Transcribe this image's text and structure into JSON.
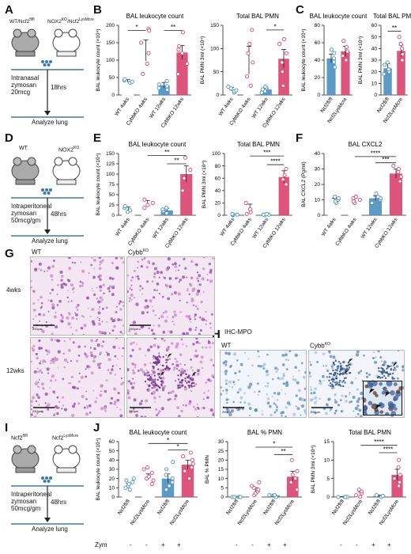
{
  "panels": {
    "A": {
      "letter": "A",
      "mouse_left": "WT/Ncf2",
      "mouse_left_sup": "fl/fl",
      "mouse_right": "NOX2",
      "mouse_right_sup": "KO",
      "mouse_right2": "/Ncf2",
      "mouse_right2_sup": "LysMcre",
      "step1": "Intranasal",
      "step2": "zymosan",
      "step3": "20mcg",
      "time": "18hrs",
      "end": "Analyze lung"
    },
    "B": {
      "letter": "B"
    },
    "C": {
      "letter": "C"
    },
    "D": {
      "letter": "D",
      "mouse_left": "WT",
      "mouse_right": "NOX2",
      "mouse_right_sup": "KO",
      "step1": "Intraperitoneal",
      "step2": "zymosan",
      "step3": "50mcg/gm",
      "time": "48hrs",
      "end": "Analyze lung"
    },
    "E": {
      "letter": "E"
    },
    "F": {
      "letter": "F"
    },
    "G": {
      "letter": "G",
      "col1": "WT",
      "col2": "Cybb",
      "col2_sup": "KO",
      "row1": "4wks",
      "row2": "12wks"
    },
    "H": {
      "letter": "H",
      "title": "IHC-MPO",
      "col1": "WT",
      "col2": "Cybb",
      "col2_sup": "KO"
    },
    "I": {
      "letter": "I",
      "mouse_left": "Ncf2",
      "mouse_left_sup": "fl/fl",
      "mouse_right": "Ncf2",
      "mouse_right_sup": "LysMcre",
      "step1": "Intraperitoneal",
      "step2": "zymosan",
      "step3": "50mcg/gm",
      "time": "48hrs",
      "end": "Analyze lung"
    },
    "J": {
      "letter": "J",
      "zym_label": "Zym",
      "zym_signs": [
        "-",
        "-",
        "+",
        "+"
      ]
    }
  },
  "chart_data": [
    {
      "id": "B1",
      "type": "bar",
      "title": "BAL leukocyte count",
      "ylabel": "BAL leukocyte count (×10⁴)",
      "ylim": [
        0,
        200
      ],
      "yticks": [
        0,
        50,
        100,
        150,
        200
      ],
      "categories": [
        "WT 4wks",
        "CybbKO 4wks",
        "WT 12wks",
        "CybbKO 12wks"
      ],
      "values": [
        40,
        128,
        28,
        122
      ],
      "errors": [
        4,
        30,
        8,
        20
      ],
      "points": [
        [
          35,
          38,
          42,
          45
        ],
        [
          60,
          90,
          120,
          150,
          190,
          185
        ],
        [
          15,
          20,
          25,
          30,
          40
        ],
        [
          60,
          90,
          120,
          130,
          140,
          180
        ]
      ],
      "colors": [
        "#4a90c2",
        "#d9436f",
        "#4a90c2",
        "#d9436f"
      ],
      "filled": [
        false,
        false,
        true,
        true
      ],
      "sig": [
        {
          "from": 0,
          "to": 1,
          "label": "*",
          "level": 185
        },
        {
          "from": 2,
          "to": 3,
          "label": "**",
          "level": 185
        }
      ]
    },
    {
      "id": "B2",
      "type": "bar",
      "title": "Total BAL PMN",
      "ylabel": "BAL PMN 3ml (×10⁴)",
      "ylim": [
        0,
        150
      ],
      "yticks": [
        0,
        50,
        100,
        150
      ],
      "categories": [
        "WT 4wks",
        "CybbKO 4wks",
        "WT 12wks",
        "CybbKO 12wks"
      ],
      "values": [
        12,
        75,
        12,
        78
      ],
      "errors": [
        4,
        30,
        3,
        20
      ],
      "points": [
        [
          5,
          8,
          10,
          14,
          18
        ],
        [
          20,
          40,
          70,
          110,
          140,
          90
        ],
        [
          5,
          8,
          12,
          15,
          18
        ],
        [
          20,
          50,
          70,
          90,
          110,
          120
        ]
      ],
      "colors": [
        "#4a90c2",
        "#d9436f",
        "#4a90c2",
        "#d9436f"
      ],
      "filled": [
        false,
        false,
        true,
        true
      ],
      "sig": [
        {
          "from": 2,
          "to": 3,
          "label": "*",
          "level": 140
        }
      ]
    },
    {
      "id": "C1",
      "type": "bar",
      "title": "BAL leukocyte count",
      "ylabel": "BAL leukocyte count (×10⁴)",
      "ylim": [
        0,
        80
      ],
      "yticks": [
        0,
        20,
        40,
        60,
        80
      ],
      "categories": [
        "Ncf2fl/fl",
        "Ncf2LysMcre"
      ],
      "values": [
        42,
        50
      ],
      "errors": [
        5,
        6
      ],
      "points": [
        [
          32,
          38,
          42,
          48,
          52
        ],
        [
          40,
          45,
          50,
          55,
          62
        ]
      ],
      "colors": [
        "#4a90c2",
        "#d9436f"
      ],
      "filled": [
        true,
        true
      ],
      "sig": []
    },
    {
      "id": "C2",
      "type": "bar",
      "title": "Total BAL PMN",
      "ylabel": "BAL PMN 3ml (×10⁴)",
      "ylim": [
        0,
        60
      ],
      "yticks": [
        0,
        10,
        20,
        30,
        40,
        50,
        60
      ],
      "categories": [
        "Ncf2fl/fl",
        "Ncf2LysMcre"
      ],
      "values": [
        23,
        38
      ],
      "errors": [
        4,
        5
      ],
      "points": [
        [
          18,
          20,
          22,
          26,
          28
        ],
        [
          30,
          35,
          40,
          44,
          50
        ]
      ],
      "colors": [
        "#4a90c2",
        "#d9436f"
      ],
      "filled": [
        true,
        true
      ],
      "sig": [
        {
          "from": 0,
          "to": 1,
          "label": "**",
          "level": 55
        }
      ]
    },
    {
      "id": "E1",
      "type": "bar",
      "title": "BAL leukocyte count",
      "ylabel": "BAL leukocyte count (×10⁴)",
      "ylim": [
        0,
        150
      ],
      "yticks": [
        0,
        25,
        50,
        75,
        100,
        125,
        150
      ],
      "categories": [
        "WT 4wks",
        "CybbKO 4wks",
        "WT 12wks",
        "CybbKO 12wks"
      ],
      "values": [
        15,
        28,
        12,
        100
      ],
      "errors": [
        5,
        8,
        5,
        20
      ],
      "points": [
        [
          8,
          12,
          18,
          22
        ],
        [
          18,
          25,
          30,
          38
        ],
        [
          5,
          10,
          14,
          18
        ],
        [
          60,
          90,
          110,
          140
        ]
      ],
      "colors": [
        "#4a90c2",
        "#d9436f",
        "#4a90c2",
        "#d9436f"
      ],
      "filled": [
        false,
        false,
        true,
        true
      ],
      "sig": [
        {
          "from": 1,
          "to": 3,
          "label": "**",
          "level": 145
        },
        {
          "from": 2,
          "to": 3,
          "label": "**",
          "level": 125
        }
      ]
    },
    {
      "id": "E2",
      "type": "bar",
      "title": "Total BAL PMN",
      "ylabel": "BAL PMN 3ml (×10⁴)",
      "ylim": [
        0,
        100
      ],
      "yticks": [
        0,
        20,
        40,
        60,
        80,
        100
      ],
      "categories": [
        "WT 4wks",
        "CybbKO 4wks",
        "WT 12wks",
        "CybbKO 12wks"
      ],
      "values": [
        1,
        10,
        1,
        62
      ],
      "errors": [
        0.5,
        8,
        0.5,
        10
      ],
      "points": [
        [
          0,
          1,
          1,
          2
        ],
        [
          2,
          5,
          10,
          20
        ],
        [
          0,
          1,
          1,
          2
        ],
        [
          50,
          58,
          65,
          75
        ]
      ],
      "colors": [
        "#4a90c2",
        "#d9436f",
        "#4a90c2",
        "#d9436f"
      ],
      "filled": [
        false,
        false,
        true,
        true
      ],
      "sig": [
        {
          "from": 1,
          "to": 3,
          "label": "***",
          "level": 96
        },
        {
          "from": 2,
          "to": 3,
          "label": "****",
          "level": 82
        }
      ]
    },
    {
      "id": "F1",
      "type": "bar",
      "title": "BAL CXCL2",
      "ylabel": "BAL CXCL2 (Pg/ml)",
      "ylim": [
        0,
        40
      ],
      "yticks": [
        0,
        10,
        20,
        30,
        40
      ],
      "categories": [
        "WT 4wks",
        "CybbKO 4wks",
        "WT 12wks",
        "CybbKO 12wks"
      ],
      "values": [
        10,
        10,
        11,
        27
      ],
      "errors": [
        1,
        1,
        1.5,
        3
      ],
      "points": [
        [
          8,
          9,
          10,
          11,
          12
        ],
        [
          8,
          9,
          10,
          11,
          12
        ],
        [
          8,
          10,
          11,
          12,
          14
        ],
        [
          22,
          25,
          28,
          30,
          32
        ]
      ],
      "colors": [
        "#4a90c2",
        "#d9436f",
        "#4a90c2",
        "#d9436f"
      ],
      "filled": [
        false,
        false,
        true,
        true
      ],
      "sig": [
        {
          "from": 1,
          "to": 3,
          "label": "****",
          "level": 38
        },
        {
          "from": 2,
          "to": 3,
          "label": "***",
          "level": 34
        }
      ]
    },
    {
      "id": "J1",
      "type": "bar",
      "title": "BAL leukocyte count",
      "ylabel": "BAL leukocyte count (×10⁴)",
      "ylim": [
        0,
        60
      ],
      "yticks": [
        0,
        10,
        20,
        30,
        40,
        50,
        60
      ],
      "categories": [
        "Ncf2fl/fl",
        "Ncf2LysMcre",
        "Ncf2fl/fl",
        "Ncf2LysMcre"
      ],
      "values": [
        13,
        22,
        20,
        35
      ],
      "errors": [
        2,
        3,
        5,
        5
      ],
      "points": [
        [
          8,
          10,
          12,
          14,
          16,
          18,
          20
        ],
        [
          14,
          18,
          20,
          22,
          26,
          30,
          32
        ],
        [
          8,
          12,
          16,
          20,
          24,
          30,
          38
        ],
        [
          20,
          28,
          32,
          36,
          40,
          44,
          48
        ]
      ],
      "colors": [
        "#4a90c2",
        "#d9436f",
        "#4a90c2",
        "#d9436f"
      ],
      "filled": [
        false,
        false,
        true,
        true
      ],
      "sig": [
        {
          "from": 1,
          "to": 3,
          "label": "*",
          "level": 58
        },
        {
          "from": 2,
          "to": 3,
          "label": "*",
          "level": 51
        }
      ]
    },
    {
      "id": "J2",
      "type": "bar",
      "title": "BAL % PMN",
      "ylabel": "BAL % PMN",
      "ylim": [
        0,
        30
      ],
      "yticks": [
        0,
        5,
        10,
        15,
        20,
        25,
        30
      ],
      "categories": [
        "Ncf2fl/fl",
        "Ncf2LysMcre",
        "Ncf2fl/fl",
        "Ncf2LysMcre"
      ],
      "values": [
        0,
        4,
        1,
        11
      ],
      "errors": [
        0.2,
        1,
        0.5,
        3
      ],
      "points": [
        [
          0,
          0,
          0,
          0,
          0
        ],
        [
          1,
          2,
          3,
          4,
          5,
          6,
          8
        ],
        [
          0,
          1,
          1
        ],
        [
          4,
          8,
          10,
          12,
          14,
          20
        ]
      ],
      "colors": [
        "#4a90c2",
        "#d9436f",
        "#4a90c2",
        "#d9436f"
      ],
      "filled": [
        false,
        false,
        true,
        true
      ],
      "sig": [
        {
          "from": 1,
          "to": 3,
          "label": "*",
          "level": 27
        },
        {
          "from": 2,
          "to": 3,
          "label": "**",
          "level": 23
        }
      ]
    },
    {
      "id": "J3",
      "type": "bar",
      "title": "Total BAL PMN",
      "ylabel": "BAL PMN 3ml (×10⁴)",
      "ylim": [
        0,
        15
      ],
      "yticks": [
        0,
        5,
        10,
        15
      ],
      "categories": [
        "Ncf2fl/fl",
        "Ncf2LysMcre",
        "Ncf2fl/fl",
        "Ncf2LysMcre"
      ],
      "values": [
        0,
        1,
        0.3,
        6
      ],
      "errors": [
        0.1,
        0.4,
        0.2,
        1.5
      ],
      "points": [
        [
          0,
          0,
          0,
          0,
          0
        ],
        [
          0,
          0.5,
          1,
          1.5,
          2
        ],
        [
          0,
          0.3,
          0.5
        ],
        [
          3,
          4,
          5,
          6,
          8,
          10
        ]
      ],
      "colors": [
        "#4a90c2",
        "#d9436f",
        "#4a90c2",
        "#d9436f"
      ],
      "filled": [
        false,
        false,
        true,
        true
      ],
      "sig": [
        {
          "from": 1,
          "to": 3,
          "label": "****",
          "level": 14
        },
        {
          "from": 2,
          "to": 3,
          "label": "****",
          "level": 12
        }
      ]
    }
  ],
  "histology": {
    "scale_bar_label": "250μm"
  }
}
